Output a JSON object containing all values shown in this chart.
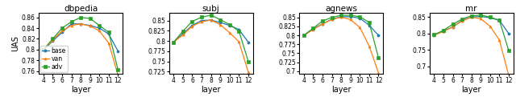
{
  "layers": [
    4,
    5,
    6,
    7,
    8,
    9,
    10,
    11,
    12
  ],
  "datasets": {
    "dbpedia": {
      "base": [
        0.799,
        0.816,
        0.832,
        0.848,
        0.848,
        0.845,
        0.84,
        0.829,
        0.797
      ],
      "van": [
        0.799,
        0.818,
        0.835,
        0.845,
        0.848,
        0.844,
        0.835,
        0.812,
        0.752
      ],
      "adv": [
        0.8,
        0.82,
        0.84,
        0.852,
        0.86,
        0.858,
        0.845,
        0.832,
        0.762
      ]
    },
    "subj": {
      "base": [
        0.797,
        0.818,
        0.838,
        0.85,
        0.851,
        0.845,
        0.838,
        0.828,
        0.797
      ],
      "van": [
        0.797,
        0.815,
        0.836,
        0.847,
        0.851,
        0.84,
        0.82,
        0.798,
        0.724
      ],
      "adv": [
        0.797,
        0.824,
        0.848,
        0.858,
        0.863,
        0.852,
        0.84,
        0.824,
        0.75
      ]
    },
    "agnews": {
      "base": [
        0.8,
        0.818,
        0.832,
        0.845,
        0.852,
        0.852,
        0.848,
        0.828,
        0.8
      ],
      "van": [
        0.8,
        0.816,
        0.832,
        0.844,
        0.851,
        0.844,
        0.822,
        0.77,
        0.695
      ],
      "adv": [
        0.8,
        0.82,
        0.84,
        0.85,
        0.856,
        0.856,
        0.852,
        0.836,
        0.737
      ]
    },
    "mr": {
      "base": [
        0.796,
        0.808,
        0.82,
        0.84,
        0.85,
        0.852,
        0.848,
        0.84,
        0.8
      ],
      "van": [
        0.795,
        0.806,
        0.82,
        0.838,
        0.85,
        0.845,
        0.822,
        0.78,
        0.672
      ],
      "adv": [
        0.796,
        0.81,
        0.828,
        0.844,
        0.854,
        0.856,
        0.85,
        0.84,
        0.748
      ]
    }
  },
  "colors": {
    "base": "#1f77b4",
    "van": "#ff7f0e",
    "adv": "#2ca02c"
  },
  "markers": {
    "base": "o",
    "van": "^",
    "adv": "s"
  },
  "yticks": {
    "dbpedia": [
      0.76,
      0.78,
      0.8,
      0.82,
      0.84,
      0.86
    ],
    "subj": [
      0.725,
      0.75,
      0.775,
      0.8,
      0.825,
      0.85
    ],
    "agnews": [
      0.7,
      0.725,
      0.75,
      0.775,
      0.8,
      0.825,
      0.85
    ],
    "mr": [
      0.7,
      0.75,
      0.8,
      0.85
    ]
  },
  "ylims": {
    "dbpedia": [
      0.755,
      0.868
    ],
    "subj": [
      0.72,
      0.868
    ],
    "agnews": [
      0.693,
      0.862
    ],
    "mr": [
      0.678,
      0.862
    ]
  },
  "titles": [
    "dbpedia",
    "subj",
    "agnews",
    "mr"
  ],
  "ylabel": "UAS",
  "xlabel": "layer"
}
